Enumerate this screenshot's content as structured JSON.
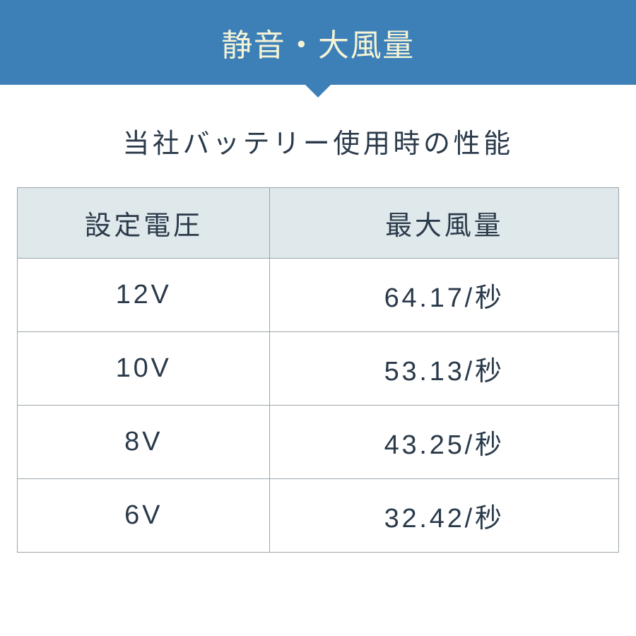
{
  "banner": {
    "title": "静音・大風量",
    "bg_color": "#3d80b7",
    "text_color": "#f5f3d6"
  },
  "subtitle": {
    "text": "当社バッテリー使用時の性能",
    "color": "#2a3a4a"
  },
  "table": {
    "header_bg": "#dfe8eb",
    "border_color": "#9aa5ab",
    "cell_text_color": "#2a3a4a",
    "columns": [
      {
        "label": "設定電圧",
        "key": "voltage",
        "class": "col-voltage"
      },
      {
        "label": "最大風量",
        "key": "airflow",
        "class": "col-airflow"
      }
    ],
    "rows": [
      {
        "voltage": "12V",
        "airflow": "64.17/秒"
      },
      {
        "voltage": "10V",
        "airflow": "53.13/秒"
      },
      {
        "voltage": "8V",
        "airflow": "43.25/秒"
      },
      {
        "voltage": "6V",
        "airflow": "32.42/秒"
      }
    ]
  }
}
